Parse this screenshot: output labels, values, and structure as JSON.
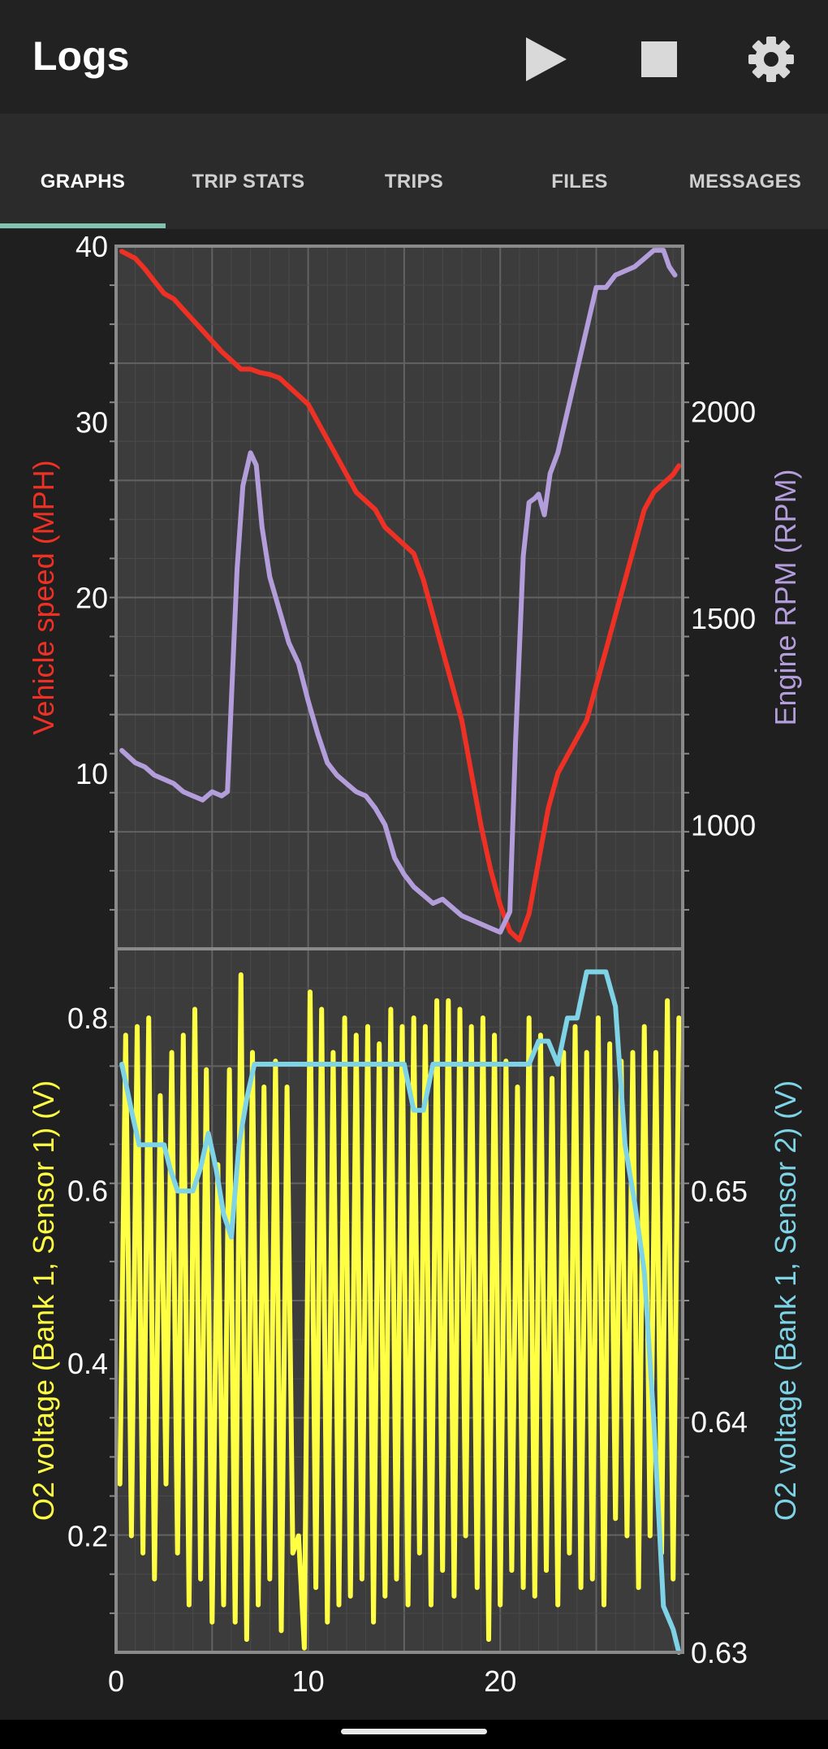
{
  "app": {
    "title": "Logs",
    "actions": [
      {
        "name": "play-icon",
        "glyph": "play"
      },
      {
        "name": "stop-icon",
        "glyph": "stop"
      },
      {
        "name": "gear-icon",
        "glyph": "settings"
      }
    ]
  },
  "tabs": [
    {
      "label": "GRAPHS",
      "active": true
    },
    {
      "label": "TRIP STATS",
      "active": false
    },
    {
      "label": "TRIPS",
      "active": false
    },
    {
      "label": "FILES",
      "active": false
    },
    {
      "label": "MESSAGES",
      "active": false
    }
  ],
  "colors": {
    "speed": "#ee3124",
    "rpm": "#b39ddb",
    "o2_s1": "#ffff44",
    "o2_s2": "#7ed4e6",
    "plot_bg": "#3c3c3c",
    "grid": "#5a5a5a",
    "frame": "#8a8a8a",
    "tab_indicator": "#7fc3b0"
  },
  "chart_data": [
    {
      "type": "line",
      "xlim": [
        0,
        29.5
      ],
      "x_ticks": [
        0,
        10,
        20
      ],
      "left_axis": {
        "label": "Vehicle speed (MPH)",
        "ylim": [
          0,
          40
        ],
        "ticks": [
          10,
          20,
          30,
          40
        ]
      },
      "right_axis": {
        "label": "Engine RPM (RPM)",
        "ylim": [
          700,
          2400
        ],
        "ticks": [
          1000,
          1500,
          2000
        ]
      },
      "series": [
        {
          "key": "speed",
          "axis": "left",
          "x": [
            0.3,
            1,
            1.5,
            2,
            2.5,
            3,
            3.5,
            4,
            4.5,
            5,
            5.5,
            6,
            6.5,
            7,
            7.5,
            8,
            8.5,
            9,
            9.5,
            10,
            10.5,
            11,
            11.5,
            12,
            12.5,
            13,
            13.5,
            14,
            14.5,
            15,
            15.5,
            16,
            16.5,
            17,
            17.5,
            18,
            18.5,
            19,
            19.5,
            20,
            20.5,
            21,
            21.5,
            22,
            22.5,
            23,
            23.5,
            24,
            24.5,
            25,
            25.5,
            26,
            26.5,
            27,
            27.5,
            28,
            28.5,
            29,
            29.3
          ],
          "y": [
            39.7,
            39.3,
            38.7,
            38,
            37.3,
            37,
            36.4,
            35.8,
            35.2,
            34.6,
            34,
            33.5,
            33,
            33,
            32.8,
            32.7,
            32.5,
            32,
            31.5,
            31,
            30,
            29,
            28,
            27,
            26,
            25.5,
            25,
            24,
            23.5,
            23,
            22.5,
            21,
            19,
            17,
            15,
            13,
            10,
            7,
            4.5,
            2.5,
            1,
            0.5,
            2,
            5,
            8,
            10,
            11,
            12,
            13,
            15,
            17,
            19,
            21,
            23,
            25,
            26,
            26.5,
            27,
            27.5
          ]
        },
        {
          "key": "rpm",
          "axis": "right",
          "x": [
            0.3,
            1,
            1.5,
            2,
            2.5,
            3,
            3.5,
            4,
            4.5,
            5,
            5.5,
            5.8,
            6,
            6.3,
            6.6,
            7,
            7.3,
            7.6,
            8,
            8.5,
            9,
            9.5,
            10,
            10.5,
            11,
            11.5,
            12,
            12.5,
            13,
            13.5,
            14,
            14.5,
            15,
            15.5,
            16,
            16.5,
            17,
            17.5,
            18,
            18.5,
            19,
            19.5,
            20,
            20.5,
            20.8,
            21.2,
            21.5,
            21.8,
            22,
            22.3,
            22.6,
            23,
            23.5,
            24,
            24.5,
            25,
            25.5,
            26,
            26.5,
            27,
            27.5,
            28,
            28.5,
            28.8,
            29.1
          ],
          "y": [
            1180,
            1150,
            1140,
            1120,
            1110,
            1100,
            1080,
            1070,
            1060,
            1080,
            1070,
            1080,
            1300,
            1620,
            1820,
            1900,
            1870,
            1720,
            1600,
            1520,
            1440,
            1390,
            1300,
            1220,
            1150,
            1120,
            1100,
            1080,
            1070,
            1040,
            1000,
            920,
            880,
            850,
            830,
            810,
            820,
            800,
            780,
            770,
            760,
            750,
            740,
            790,
            1200,
            1650,
            1780,
            1790,
            1800,
            1750,
            1850,
            1900,
            2000,
            2100,
            2200,
            2300,
            2300,
            2330,
            2340,
            2350,
            2370,
            2390,
            2390,
            2350,
            2330
          ]
        }
      ]
    },
    {
      "type": "line",
      "xlim": [
        0,
        29.5
      ],
      "x_ticks": [
        0,
        10,
        20
      ],
      "left_axis": {
        "label": "O2 voltage (Bank 1, Sensor 1) (V)",
        "ylim": [
          0.065,
          0.88
        ],
        "ticks": [
          0.2,
          0.4,
          0.6,
          0.8
        ]
      },
      "right_axis": {
        "label": "O2 voltage (Bank 1, Sensor 2) (V)",
        "ylim": [
          0.63,
          0.6605
        ],
        "ticks": [
          0.63,
          0.64,
          0.65
        ]
      },
      "series": [
        {
          "key": "o2_s1",
          "axis": "left",
          "x": [
            0.2,
            0.5,
            0.8,
            1.1,
            1.4,
            1.7,
            2,
            2.3,
            2.6,
            2.9,
            3.2,
            3.5,
            3.8,
            4.1,
            4.4,
            4.7,
            5,
            5.3,
            5.6,
            5.9,
            6.2,
            6.5,
            6.8,
            7.1,
            7.4,
            7.7,
            8,
            8.3,
            8.6,
            8.9,
            9.2,
            9.5,
            9.8,
            10.1,
            10.4,
            10.7,
            11,
            11.3,
            11.6,
            11.9,
            12.2,
            12.5,
            12.8,
            13.1,
            13.4,
            13.7,
            14,
            14.3,
            14.6,
            14.9,
            15.2,
            15.5,
            15.8,
            16.1,
            16.4,
            16.7,
            17,
            17.3,
            17.6,
            17.9,
            18.2,
            18.5,
            18.8,
            19.1,
            19.4,
            19.7,
            20,
            20.3,
            20.6,
            20.9,
            21.2,
            21.5,
            21.8,
            22.1,
            22.4,
            22.7,
            23,
            23.3,
            23.6,
            23.9,
            24.2,
            24.5,
            24.8,
            25.1,
            25.4,
            25.7,
            26,
            26.3,
            26.6,
            26.9,
            27.2,
            27.5,
            27.8,
            28.1,
            28.4,
            28.7,
            29,
            29.3
          ],
          "y": [
            0.26,
            0.78,
            0.2,
            0.79,
            0.18,
            0.8,
            0.15,
            0.71,
            0.26,
            0.76,
            0.18,
            0.78,
            0.12,
            0.81,
            0.15,
            0.74,
            0.1,
            0.63,
            0.12,
            0.74,
            0.1,
            0.85,
            0.08,
            0.76,
            0.12,
            0.72,
            0.15,
            0.75,
            0.09,
            0.72,
            0.18,
            0.2,
            0.07,
            0.83,
            0.14,
            0.81,
            0.1,
            0.76,
            0.12,
            0.8,
            0.13,
            0.78,
            0.15,
            0.79,
            0.1,
            0.77,
            0.13,
            0.81,
            0.15,
            0.79,
            0.12,
            0.8,
            0.18,
            0.79,
            0.12,
            0.82,
            0.16,
            0.82,
            0.13,
            0.81,
            0.2,
            0.79,
            0.14,
            0.8,
            0.08,
            0.78,
            0.12,
            0.75,
            0.16,
            0.72,
            0.14,
            0.8,
            0.13,
            0.78,
            0.16,
            0.73,
            0.12,
            0.76,
            0.18,
            0.79,
            0.14,
            0.76,
            0.15,
            0.8,
            0.12,
            0.77,
            0.22,
            0.75,
            0.2,
            0.76,
            0.14,
            0.79,
            0.2,
            0.76,
            0.18,
            0.82,
            0.15,
            0.8
          ]
        },
        {
          "key": "o2_s2",
          "axis": "right",
          "x": [
            0.3,
            0.8,
            1.2,
            1.6,
            2,
            2.5,
            2.8,
            3.2,
            3.6,
            4,
            4.4,
            4.8,
            5.2,
            5.6,
            6,
            6.4,
            6.8,
            7.2,
            7.6,
            8,
            9,
            10,
            11,
            12,
            13,
            14,
            15,
            15.5,
            16,
            16.5,
            17,
            18,
            19,
            20,
            21,
            21.5,
            22,
            22.5,
            23,
            23.5,
            24,
            24.5,
            25,
            25.5,
            26,
            26.5,
            27,
            27.5,
            28,
            28.5,
            29,
            29.3
          ],
          "y": [
            0.6555,
            0.6535,
            0.652,
            0.652,
            0.652,
            0.652,
            0.651,
            0.65,
            0.65,
            0.65,
            0.651,
            0.6525,
            0.651,
            0.649,
            0.648,
            0.652,
            0.654,
            0.6555,
            0.6555,
            0.6555,
            0.6555,
            0.6555,
            0.6555,
            0.6555,
            0.6555,
            0.6555,
            0.6555,
            0.6535,
            0.6535,
            0.6555,
            0.6555,
            0.6555,
            0.6555,
            0.6555,
            0.6555,
            0.6555,
            0.6565,
            0.6565,
            0.6555,
            0.6575,
            0.6575,
            0.6595,
            0.6595,
            0.6595,
            0.658,
            0.652,
            0.6495,
            0.6465,
            0.64,
            0.632,
            0.631,
            0.63
          ]
        }
      ]
    }
  ]
}
